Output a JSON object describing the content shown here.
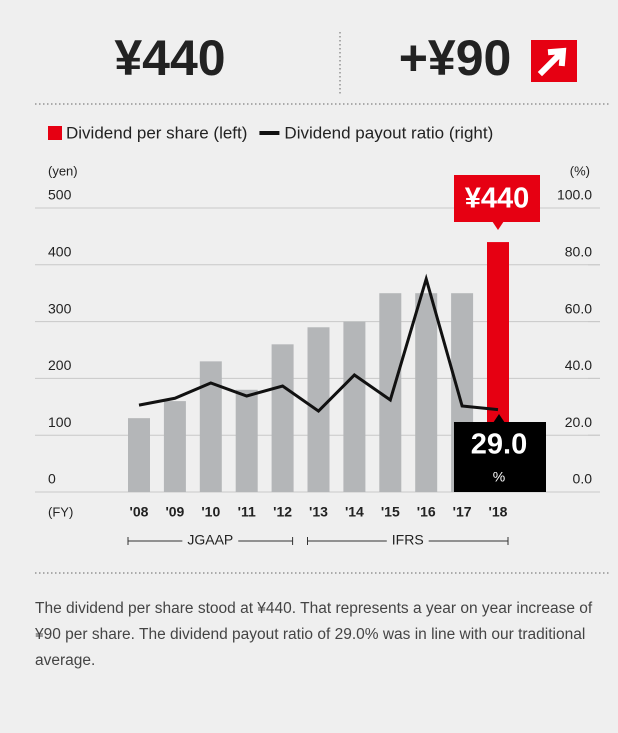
{
  "header": {
    "value": "¥440",
    "change": "+¥90"
  },
  "chart_data": {
    "type": "bar",
    "categories": [
      "'08",
      "'09",
      "'10",
      "'11",
      "'12",
      "'13",
      "'14",
      "'15",
      "'16",
      "'17",
      "'18"
    ],
    "x_label": "(FY)",
    "y_label": "(yen)",
    "y2_label": "(%)",
    "series": [
      {
        "name": "Dividend per share (left)",
        "color": "#e60012",
        "type": "bar",
        "colors": [
          "#b4b6b8",
          "#b4b6b8",
          "#b4b6b8",
          "#b4b6b8",
          "#b4b6b8",
          "#b4b6b8",
          "#b4b6b8",
          "#b4b6b8",
          "#b4b6b8",
          "#b4b6b8",
          "#e60012"
        ],
        "values": [
          130,
          160,
          230,
          180,
          260,
          290,
          300,
          350,
          350,
          350,
          440
        ],
        "value_labels": [
          null,
          null,
          null,
          null,
          null,
          null,
          null,
          null,
          null,
          null,
          "¥440"
        ]
      },
      {
        "name": "Dividend payout ratio (right)",
        "color": "#111111",
        "type": "line",
        "axis": "y2",
        "values": [
          30.6,
          33,
          38.4,
          33.8,
          37.3,
          28.5,
          41.2,
          32.4,
          75,
          30.3,
          29.0
        ],
        "value_labels": [
          null,
          null,
          null,
          null,
          null,
          null,
          null,
          null,
          null,
          null,
          "29.0"
        ],
        "value_label_unit": "%"
      }
    ],
    "ylim": [
      0,
      500
    ],
    "yticks": [
      0,
      100,
      200,
      300,
      400,
      500
    ],
    "y2lim": [
      0,
      100
    ],
    "y2ticks": [
      {
        "value": 0,
        "label": "0.0"
      },
      {
        "value": 20,
        "label": "20.0"
      },
      {
        "value": 40,
        "label": "40.0"
      },
      {
        "value": 60,
        "label": "60.0"
      },
      {
        "value": 80,
        "label": "80.0"
      },
      {
        "value": 100,
        "label": "100.0"
      }
    ],
    "grid": true,
    "periods": [
      {
        "label": "JGAAP",
        "start": "'08",
        "end": "'12"
      },
      {
        "label": "IFRS",
        "start": "'13",
        "end": "'18"
      }
    ]
  },
  "note": "The dividend per share stood at ¥440. That represents a year on year increase of ¥90 per share. The dividend payout ratio of 29.0% was in line with our traditional average."
}
